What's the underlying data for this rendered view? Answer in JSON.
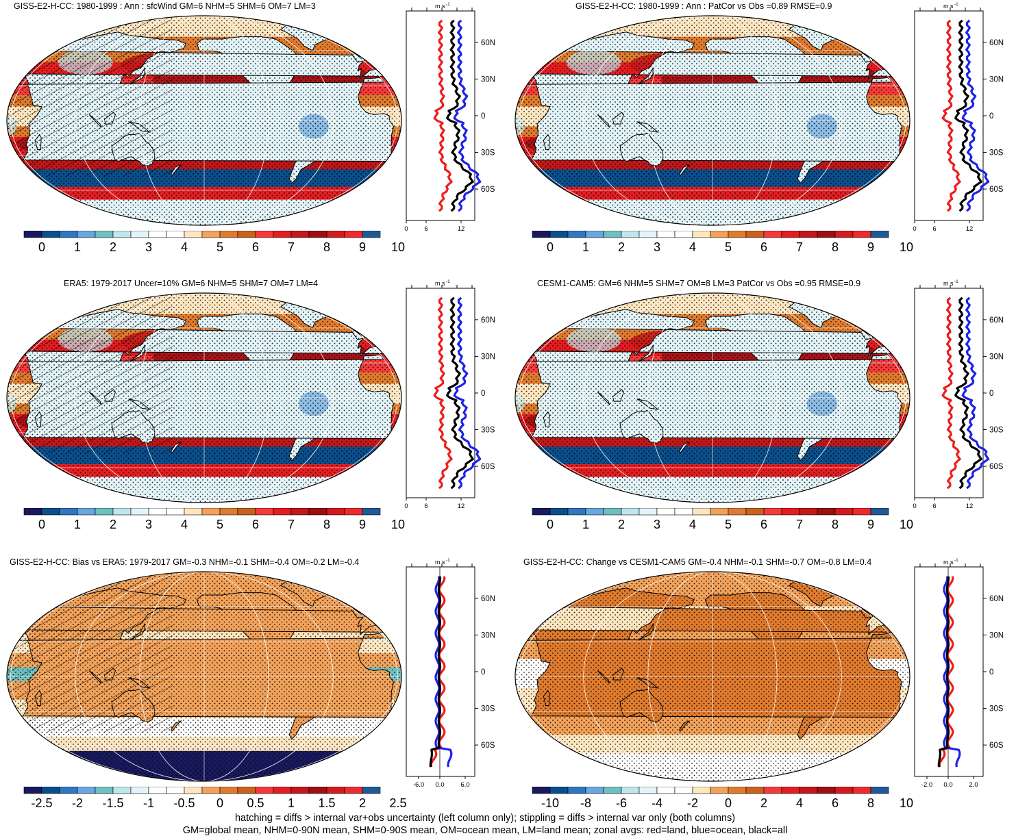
{
  "colors": {
    "palette": [
      "#19195e",
      "#0a4f8c",
      "#2f76c3",
      "#6aa6e0",
      "#6fc0c0",
      "#bfe6ee",
      "#e3f4f8",
      "#ffffff",
      "#fde6c0",
      "#f2a25a",
      "#e07b2e",
      "#c9621c",
      "#f6393a",
      "#e51d21",
      "#c31719",
      "#9c0f13",
      "#d31a1d",
      "#ef2a2e",
      "#a0221f",
      "#1f5a95"
    ],
    "zonal_red": "#ee1c1c",
    "zonal_blue": "#1e22e6",
    "zonal_black": "#000000"
  },
  "panels": [
    {
      "title": "GISS-E2-H-CC: 1980-1999 : Ann : sfcWind GM=6 NHM=5 SHM=6 OM=7 LM=3",
      "map_style": "mean",
      "colorbar_labels": [
        "0",
        "1",
        "2",
        "3",
        "4",
        "5",
        "6",
        "7",
        "8",
        "9",
        "10"
      ],
      "zonal": {
        "unit_label": "m s",
        "unit_exp": "-1",
        "lat_labels": [
          "60N",
          "30N",
          "0",
          "30S",
          "60S"
        ],
        "x_ticks": [
          "0",
          "6",
          "12"
        ],
        "zero_line": false
      }
    },
    {
      "title": "GISS-E2-H-CC: 1980-1999 : Ann : PatCor vs Obs =0.89 RMSE=0.9",
      "map_style": "mean",
      "colorbar_labels": [
        "0",
        "1",
        "2",
        "3",
        "4",
        "5",
        "6",
        "7",
        "8",
        "9",
        "10"
      ],
      "zonal": {
        "unit_label": "m s",
        "unit_exp": "-1",
        "lat_labels": [
          "60N",
          "30N",
          "0",
          "30S",
          "60S"
        ],
        "x_ticks": [
          "0",
          "6",
          "12"
        ],
        "zero_line": false
      }
    },
    {
      "title": "ERA5: 1979-2017 Uncer=10% GM=6 NHM=5 SHM=7 OM=7 LM=4",
      "map_style": "mean",
      "colorbar_labels": [
        "0",
        "1",
        "2",
        "3",
        "4",
        "5",
        "6",
        "7",
        "8",
        "9",
        "10"
      ],
      "zonal": {
        "unit_label": "m s",
        "unit_exp": "-1",
        "lat_labels": [
          "60N",
          "30N",
          "0",
          "30S",
          "60S"
        ],
        "x_ticks": [
          "0",
          "6",
          "12"
        ],
        "zero_line": false
      }
    },
    {
      "title": "CESM1-CAM5: GM=6 NHM=5 SHM=7 OM=8 LM=3 PatCor vs Obs =0.95 RMSE=0.9",
      "map_style": "mean",
      "colorbar_labels": [
        "0",
        "1",
        "2",
        "3",
        "4",
        "5",
        "6",
        "7",
        "8",
        "9",
        "10"
      ],
      "zonal": {
        "unit_label": "m s",
        "unit_exp": "-1",
        "lat_labels": [
          "60N",
          "30N",
          "0",
          "30S",
          "60S"
        ],
        "x_ticks": [
          "0",
          "6",
          "12"
        ],
        "zero_line": false
      }
    },
    {
      "title": "GISS-E2-H-CC: Bias vs ERA5: 1979-2017 GM=-0.3 NHM=-0.1 SHM=-0.4 OM=-0.2 LM=-0.4",
      "map_style": "bias",
      "colorbar_labels": [
        "-2.5",
        "-2",
        "-1.5",
        "-1",
        "-0.5",
        "0",
        "0.5",
        "1",
        "1.5",
        "2",
        "2.5"
      ],
      "zonal": {
        "unit_label": "m s",
        "unit_exp": "-1",
        "lat_labels": [
          "60N",
          "30N",
          "0",
          "30S",
          "60S"
        ],
        "x_ticks": [
          "-6.0",
          "0.0",
          "6.0"
        ],
        "zero_line": true
      }
    },
    {
      "title": "GISS-E2-H-CC: Change vs CESM1-CAM5 GM=-0.4 NHM=-0.1 SHM=-0.7 OM=-0.8 LM=0.4",
      "map_style": "change",
      "colorbar_labels": [
        "-10",
        "-8",
        "-6",
        "-4",
        "-2",
        "0",
        "2",
        "4",
        "6",
        "8",
        "10"
      ],
      "zonal": {
        "unit_label": "m s",
        "unit_exp": "-1",
        "lat_labels": [
          "60N",
          "30N",
          "0",
          "30S",
          "60S"
        ],
        "x_ticks": [
          "-2.0",
          "0.0",
          "2.0"
        ],
        "zero_line": true
      }
    }
  ],
  "footer": {
    "line1": "hatching = diffs > internal var+obs uncertainty (left column only); stippling = diffs > internal var only (both columns)",
    "line2": "GM=global mean, NHM=0-90N mean, SHM=0-90S mean, OM=ocean mean, LM=land mean; zonal avgs: red=land, blue=ocean, black=all"
  }
}
